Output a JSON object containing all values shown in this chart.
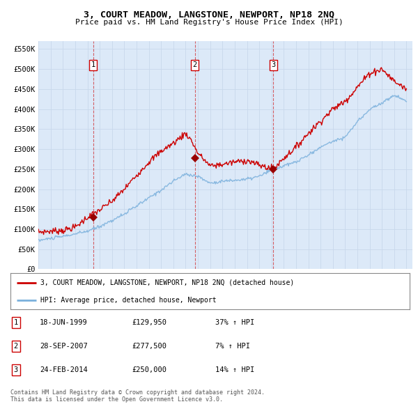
{
  "title": "3, COURT MEADOW, LANGSTONE, NEWPORT, NP18 2NQ",
  "subtitle": "Price paid vs. HM Land Registry's House Price Index (HPI)",
  "ylabel_ticks": [
    "£0",
    "£50K",
    "£100K",
    "£150K",
    "£200K",
    "£250K",
    "£300K",
    "£350K",
    "£400K",
    "£450K",
    "£500K",
    "£550K"
  ],
  "ytick_values": [
    0,
    50000,
    100000,
    150000,
    200000,
    250000,
    300000,
    350000,
    400000,
    450000,
    500000,
    550000
  ],
  "ylim": [
    0,
    570000
  ],
  "xlim_start": 1995.0,
  "xlim_end": 2025.5,
  "background_color": "#dce9f8",
  "plot_bg": "#dce9f8",
  "grid_color": "#c8d8ec",
  "transactions": [
    {
      "num": 1,
      "date_label": "18-JUN-1999",
      "x": 1999.46,
      "price": 129950,
      "pct": "37%",
      "dir": "↑"
    },
    {
      "num": 2,
      "date_label": "28-SEP-2007",
      "x": 2007.74,
      "price": 277500,
      "pct": "7%",
      "dir": "↑"
    },
    {
      "num": 3,
      "date_label": "24-FEB-2014",
      "x": 2014.15,
      "price": 250000,
      "pct": "14%",
      "dir": "↑"
    }
  ],
  "legend_label_red": "3, COURT MEADOW, LANGSTONE, NEWPORT, NP18 2NQ (detached house)",
  "legend_label_blue": "HPI: Average price, detached house, Newport",
  "footer_line1": "Contains HM Land Registry data © Crown copyright and database right 2024.",
  "footer_line2": "This data is licensed under the Open Government Licence v3.0.",
  "table_rows": [
    [
      "1",
      "18-JUN-1999",
      "£129,950",
      "37% ↑ HPI"
    ],
    [
      "2",
      "28-SEP-2007",
      "£277,500",
      "7% ↑ HPI"
    ],
    [
      "3",
      "24-FEB-2014",
      "£250,000",
      "14% ↑ HPI"
    ]
  ]
}
